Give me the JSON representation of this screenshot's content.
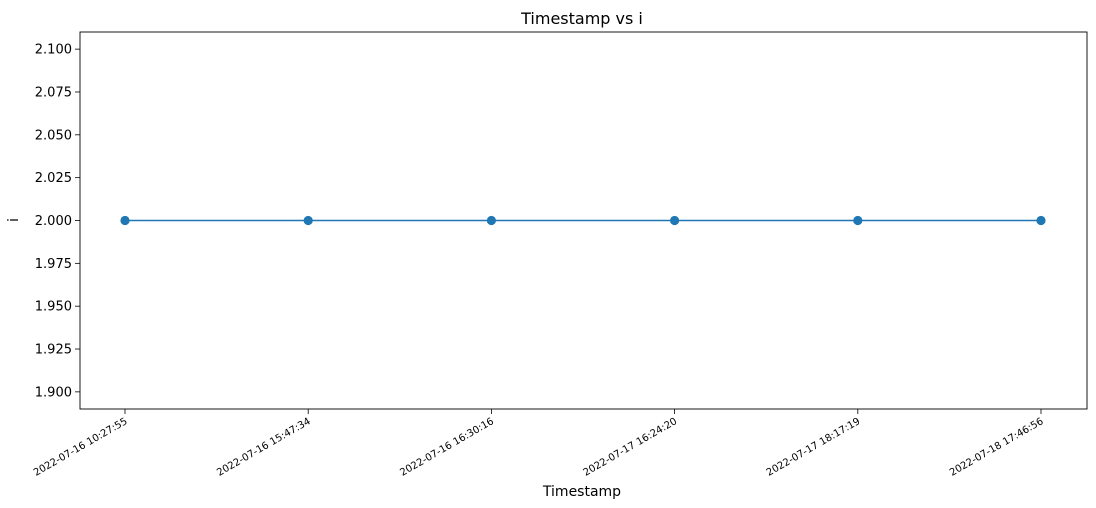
{
  "chart_data": {
    "type": "line",
    "title": "Timestamp vs i",
    "xlabel": "Timestamp",
    "ylabel": "i",
    "categories": [
      "2022-07-16 10:27:55",
      "2022-07-16 15:47:34",
      "2022-07-16 16:30:16",
      "2022-07-17 16:24:20",
      "2022-07-17 18:17:19",
      "2022-07-18 17:46:56"
    ],
    "series": [
      {
        "values": [
          2,
          2,
          2,
          2,
          2,
          2
        ],
        "color": "#1f77b4",
        "marker": "circle"
      }
    ],
    "ylim": [
      1.89,
      2.11
    ],
    "yticks": [
      1.9,
      1.925,
      1.95,
      1.975,
      2.0,
      2.025,
      2.05,
      2.075,
      2.1
    ],
    "ytick_labels": [
      "1.900",
      "1.925",
      "1.950",
      "1.975",
      "2.000",
      "2.025",
      "2.050",
      "2.075",
      "2.100"
    ],
    "grid": false,
    "legend": false
  }
}
